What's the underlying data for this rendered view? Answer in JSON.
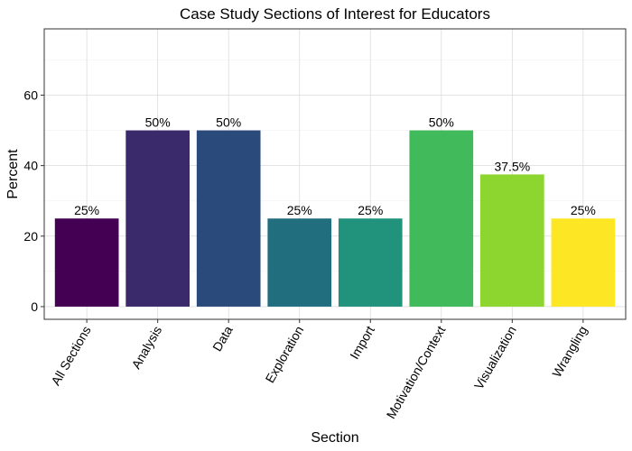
{
  "chart_data": {
    "type": "bar",
    "title": "Case Study Sections of Interest for Educators",
    "xlabel": "Section",
    "ylabel": "Percent",
    "ylim": [
      -3.6,
      78.8
    ],
    "yticks": [
      0,
      20,
      40,
      60
    ],
    "grid": true,
    "categories": [
      "All Sections",
      "Analysis",
      "Data",
      "Exploration",
      "Import",
      "Motivation/Context",
      "Visualization",
      "Wrangling"
    ],
    "values": [
      25,
      50,
      50,
      25,
      25,
      50,
      37.5,
      25
    ],
    "labels": [
      "25%",
      "50%",
      "50%",
      "25%",
      "25%",
      "50%",
      "37.5%",
      "25%"
    ],
    "colors": [
      "#440154",
      "#3B2A6B",
      "#2B4A7C",
      "#216E7F",
      "#21927C",
      "#40BA5A",
      "#8DD62F",
      "#FDE725"
    ]
  }
}
